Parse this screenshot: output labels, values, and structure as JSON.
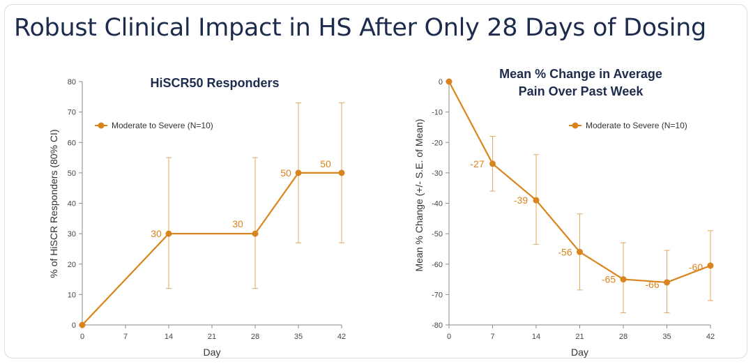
{
  "slide": {
    "title": "Robust Clinical Impact in HS After Only 28 Days of Dosing"
  },
  "chart_data": [
    {
      "type": "line",
      "title": "HiSCR50 Responders",
      "xlabel": "Day",
      "ylabel": "% of HiSCR Responders (80% CI)",
      "xlim": [
        0,
        42
      ],
      "ylim": [
        0,
        80
      ],
      "x_ticks": [
        0,
        7,
        14,
        21,
        28,
        35,
        42
      ],
      "y_ticks": [
        0,
        10,
        20,
        30,
        40,
        50,
        60,
        70,
        80
      ],
      "legend": "upper-left",
      "grid": false,
      "series": [
        {
          "name": "Moderate to Severe (N=10)",
          "color": "#d9841c",
          "x": [
            0,
            14,
            28,
            35,
            42
          ],
          "y": [
            0,
            30,
            30,
            50,
            50
          ],
          "err_low": [
            null,
            12,
            12,
            27,
            27
          ],
          "err_high": [
            null,
            55,
            55,
            73,
            73
          ],
          "labels": [
            "",
            "30",
            "30",
            "50",
            "50"
          ]
        }
      ]
    },
    {
      "type": "line",
      "title": "Mean % Change in Average Pain Over Past Week",
      "title_lines": [
        "Mean % Change in Average",
        "Pain Over Past Week"
      ],
      "xlabel": "Day",
      "ylabel": "Mean % Change (+/- S.E. of Mean)",
      "xlim": [
        0,
        42
      ],
      "ylim": [
        -80,
        0
      ],
      "x_ticks": [
        0,
        7,
        14,
        21,
        28,
        35,
        42
      ],
      "y_ticks": [
        0,
        -10,
        -20,
        -30,
        -40,
        -50,
        -60,
        -70,
        -80
      ],
      "legend": "upper-right",
      "grid": false,
      "series": [
        {
          "name": "Moderate to Severe (N=10)",
          "color": "#d9841c",
          "x": [
            0,
            7,
            14,
            21,
            28,
            35,
            42
          ],
          "y": [
            0,
            -27,
            -39,
            -56,
            -65,
            -66,
            -60.5
          ],
          "err_low": [
            null,
            -36,
            -53.5,
            -68.5,
            -76,
            -76,
            -72
          ],
          "err_high": [
            null,
            -18,
            -24,
            -43.5,
            -53,
            -55.5,
            -49
          ],
          "labels": [
            "",
            "-27",
            "-39",
            "-56",
            "-65",
            "-66",
            "-60"
          ]
        }
      ]
    }
  ]
}
